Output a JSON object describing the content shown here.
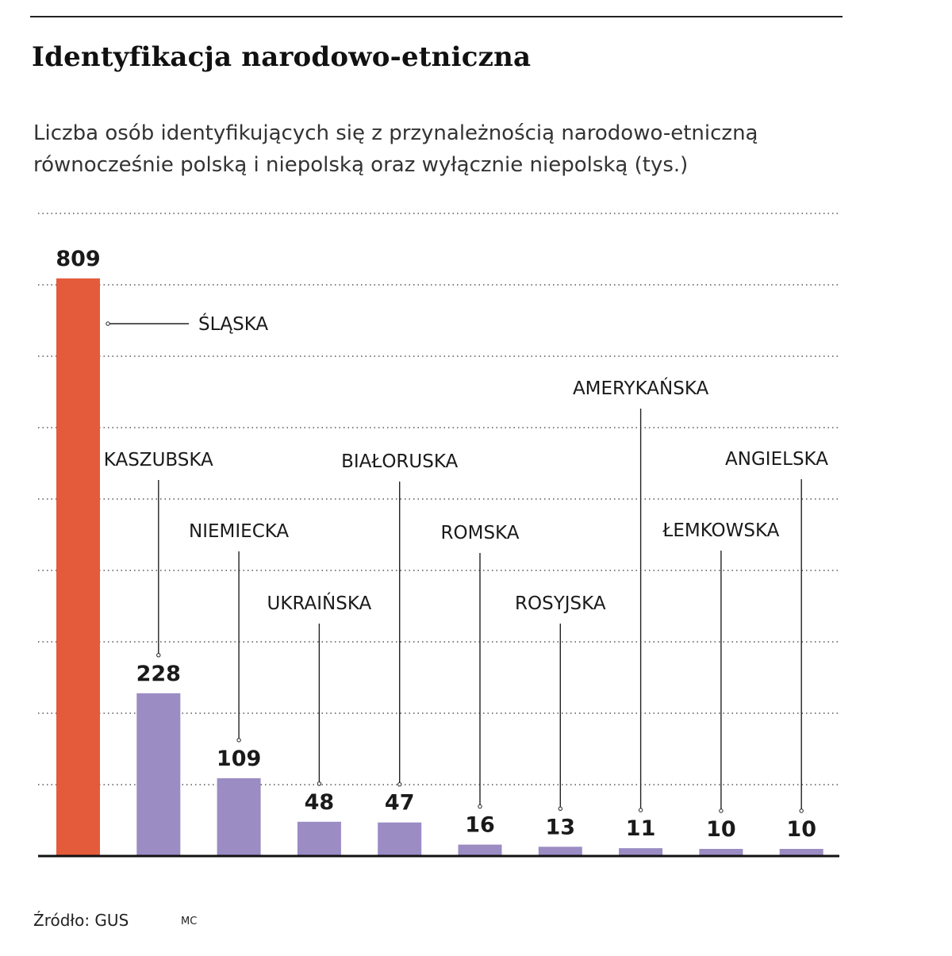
{
  "header": {
    "title": "Identyfikacja narodowo-etniczna",
    "subtitle_line1": "Liczba osób identyfikujących się z przynależnością narodowo-etniczną",
    "subtitle_line2": "równocześnie polską i niepolską oraz wyłącznie niepolską (tys.)"
  },
  "footer": {
    "source": "Źródło: GUS",
    "credit": "MC"
  },
  "chart_data": {
    "type": "bar",
    "categories": [
      "ŚLĄSKA",
      "KASZUBSKA",
      "NIEMIECKA",
      "UKRAIŃSKA",
      "BIAŁORUSKA",
      "ROMSKA",
      "ROSYJSKA",
      "AMERYKAŃSKA",
      "ŁEMKOWSKA",
      "ANGIELSKA"
    ],
    "values": [
      809,
      228,
      109,
      48,
      47,
      16,
      13,
      11,
      10,
      10
    ],
    "value_labels": [
      "809",
      "228",
      "109",
      "48",
      "47",
      "16",
      "13",
      "11",
      "10",
      "10"
    ],
    "ylim": [
      0,
      900
    ],
    "grid": true,
    "colors": {
      "highlight": "#e45b3c",
      "bar": "#9b8cc4",
      "axis": "#111111",
      "grid": "#555555"
    }
  }
}
